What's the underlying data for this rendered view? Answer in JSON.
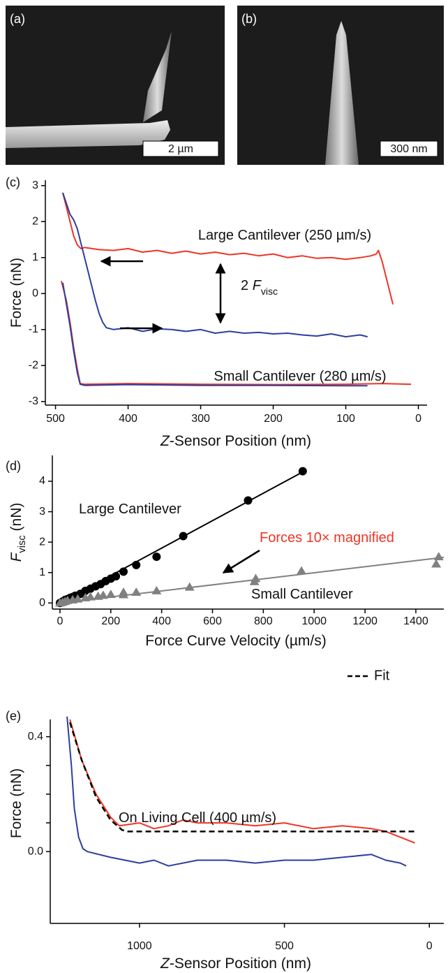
{
  "images": [
    {
      "label": "(a)",
      "scale_bar": "2 µm"
    },
    {
      "label": "(b)",
      "scale_bar": "300 nm"
    }
  ],
  "chart_data": [
    {
      "type": "line",
      "panel": "(c)",
      "xlabel": {
        "italic": "Z",
        "text": "-Sensor Position (nm)"
      },
      "ylabel": {
        "text": "Force (nN)"
      },
      "xlim": [
        514,
        -12
      ],
      "ylim": [
        -3.1,
        3.15
      ],
      "xticks": [
        500,
        400,
        300,
        200,
        100,
        0
      ],
      "yticks": [
        3,
        2,
        1,
        0,
        -1,
        -2,
        -3
      ],
      "series": [
        {
          "color": "#ee3524",
          "x": [
            490,
            485,
            480,
            475,
            470,
            465,
            460,
            440,
            420,
            400,
            380,
            360,
            340,
            320,
            300,
            280,
            260,
            240,
            220,
            200,
            180,
            160,
            140,
            120,
            100,
            80,
            65,
            58,
            55,
            50,
            45,
            40,
            35
          ],
          "values": [
            2.8,
            2.4,
            2.0,
            1.6,
            1.35,
            1.25,
            1.28,
            1.22,
            1.2,
            1.25,
            1.15,
            1.2,
            1.12,
            1.18,
            1.1,
            1.15,
            1.08,
            1.12,
            1.05,
            1.1,
            1.0,
            1.05,
            0.98,
            1.0,
            0.95,
            1.0,
            1.05,
            1.1,
            1.2,
            0.9,
            0.5,
            0.1,
            -0.3
          ]
        },
        {
          "color": "#2d3e9e",
          "x": [
            490,
            485,
            480,
            475,
            470,
            465,
            460,
            455,
            450,
            445,
            440,
            435,
            430,
            420,
            400,
            380,
            360,
            340,
            320,
            300,
            280,
            260,
            240,
            220,
            200,
            180,
            160,
            140,
            120,
            100,
            80,
            70
          ],
          "values": [
            2.8,
            2.5,
            2.2,
            2.05,
            1.8,
            1.4,
            1.0,
            0.6,
            0.2,
            -0.2,
            -0.55,
            -0.8,
            -0.95,
            -1.0,
            -0.95,
            -1.05,
            -0.98,
            -1.0,
            -1.05,
            -1.0,
            -1.1,
            -1.05,
            -1.1,
            -1.08,
            -1.12,
            -1.1,
            -1.15,
            -1.18,
            -1.12,
            -1.2,
            -1.15,
            -1.2
          ]
        },
        {
          "color": "#ee3524",
          "x": [
            492,
            485,
            480,
            475,
            470,
            466,
            460,
            400,
            300,
            200,
            100,
            50,
            10
          ],
          "values": [
            0.35,
            -0.2,
            -0.8,
            -1.5,
            -2.1,
            -2.5,
            -2.52,
            -2.5,
            -2.52,
            -2.53,
            -2.52,
            -2.5,
            -2.52
          ]
        },
        {
          "color": "#2d3e9e",
          "x": [
            490,
            485,
            480,
            475,
            470,
            466,
            460,
            400,
            300,
            200,
            100,
            70
          ],
          "values": [
            0.3,
            -0.3,
            -0.9,
            -1.6,
            -2.2,
            -2.52,
            -2.55,
            -2.53,
            -2.55,
            -2.55,
            -2.56,
            -2.56
          ]
        }
      ],
      "annotations": [
        {
          "text": "Large Cantilever (250 µm/s)"
        },
        {
          "prefix": "2 ",
          "italic": "F",
          "subscript": "visc"
        },
        {
          "text": "Small Cantilever (280 µm/s)"
        }
      ]
    },
    {
      "type": "scatter",
      "panel": "(d)",
      "xlabel": {
        "text": "Force Curve Velocity (µm/s)"
      },
      "ylabel": {
        "italic": "F",
        "subscript": "visc",
        "text": " (nN)"
      },
      "xlim": [
        -30,
        1510
      ],
      "ylim": [
        -0.2,
        4.85
      ],
      "xticks": [
        0,
        200,
        400,
        600,
        800,
        1000,
        1200,
        1400
      ],
      "yticks": [
        0,
        1,
        2,
        3,
        4
      ],
      "series": [
        {
          "color": "#000000",
          "marker": "circle",
          "x": [
            0,
            10,
            20,
            30,
            40,
            50,
            60,
            80,
            100,
            120,
            140,
            160,
            180,
            200,
            220,
            250,
            300,
            380,
            485,
            740,
            955
          ],
          "values": [
            0,
            0.05,
            0.1,
            0.13,
            0.17,
            0.2,
            0.24,
            0.3,
            0.4,
            0.47,
            0.55,
            0.62,
            0.72,
            0.8,
            0.88,
            1.03,
            1.25,
            1.52,
            2.2,
            3.37,
            4.33
          ]
        },
        {
          "color": "#808080",
          "marker": "triangle",
          "x": [
            0,
            10,
            20,
            30,
            50,
            70,
            100,
            120,
            150,
            170,
            200,
            250,
            250,
            300,
            380,
            510,
            765,
            770,
            950,
            1480,
            1490
          ],
          "values": [
            0,
            0.02,
            0.05,
            0.08,
            0.1,
            0.13,
            0.17,
            0.2,
            0.22,
            0.25,
            0.28,
            0.27,
            0.35,
            0.35,
            0.4,
            0.52,
            0.7,
            0.8,
            1.05,
            1.28,
            1.52
          ]
        }
      ],
      "fits": [
        {
          "color": "#000000",
          "x": [
            0,
            960
          ],
          "values": [
            0,
            4.33
          ]
        },
        {
          "color": "#808080",
          "x": [
            0,
            1510
          ],
          "values": [
            0,
            1.5
          ]
        }
      ],
      "annotations": [
        {
          "text": "Large Cantilever"
        },
        {
          "text": "Forces 10× magnified",
          "color": "#ee3524"
        },
        {
          "text": "Small Cantilever"
        }
      ]
    },
    {
      "type": "line",
      "panel": "(e)",
      "xlabel": {
        "italic": "Z",
        "text": "-Sensor Position (nm)"
      },
      "ylabel": {
        "text": "Force (nN)"
      },
      "xlim": [
        1308,
        -50
      ],
      "ylim": [
        -0.25,
        0.46
      ],
      "xticks": [
        1000,
        500,
        0
      ],
      "yticks": [
        {
          "value": 0,
          "label": "0.0"
        },
        0.4
      ],
      "minor_yticks": [
        0.1,
        0.2,
        0.3
      ],
      "series": [
        {
          "color": "#ee3524",
          "x": [
            1240,
            1200,
            1150,
            1100,
            1070,
            1000,
            950,
            900,
            850,
            800,
            700,
            600,
            500,
            400,
            300,
            200,
            150,
            100,
            50
          ],
          "values": [
            0.46,
            0.32,
            0.2,
            0.12,
            0.09,
            0.1,
            0.08,
            0.09,
            0.11,
            0.1,
            0.1,
            0.09,
            0.1,
            0.08,
            0.09,
            0.08,
            0.07,
            0.05,
            0.03
          ]
        },
        {
          "color": "#2d3e9e",
          "x": [
            1250,
            1235,
            1225,
            1210,
            1195,
            1180,
            1100,
            1000,
            950,
            900,
            800,
            700,
            600,
            500,
            400,
            300,
            200,
            150,
            100,
            80
          ],
          "values": [
            0.47,
            0.3,
            0.15,
            0.05,
            0.01,
            0,
            -0.02,
            -0.04,
            -0.03,
            -0.05,
            -0.03,
            -0.03,
            -0.04,
            -0.03,
            -0.03,
            -0.02,
            -0.01,
            -0.03,
            -0.04,
            -0.05
          ]
        },
        {
          "name": "Fit",
          "color": "#000000",
          "dashed": true,
          "x": [
            1240,
            1200,
            1150,
            1100,
            1060,
            1040,
            50
          ],
          "values": [
            0.45,
            0.32,
            0.19,
            0.11,
            0.075,
            0.07,
            0.07
          ]
        }
      ],
      "annotations": [
        {
          "text": "On Living Cell (400 µm/s)"
        }
      ]
    }
  ]
}
